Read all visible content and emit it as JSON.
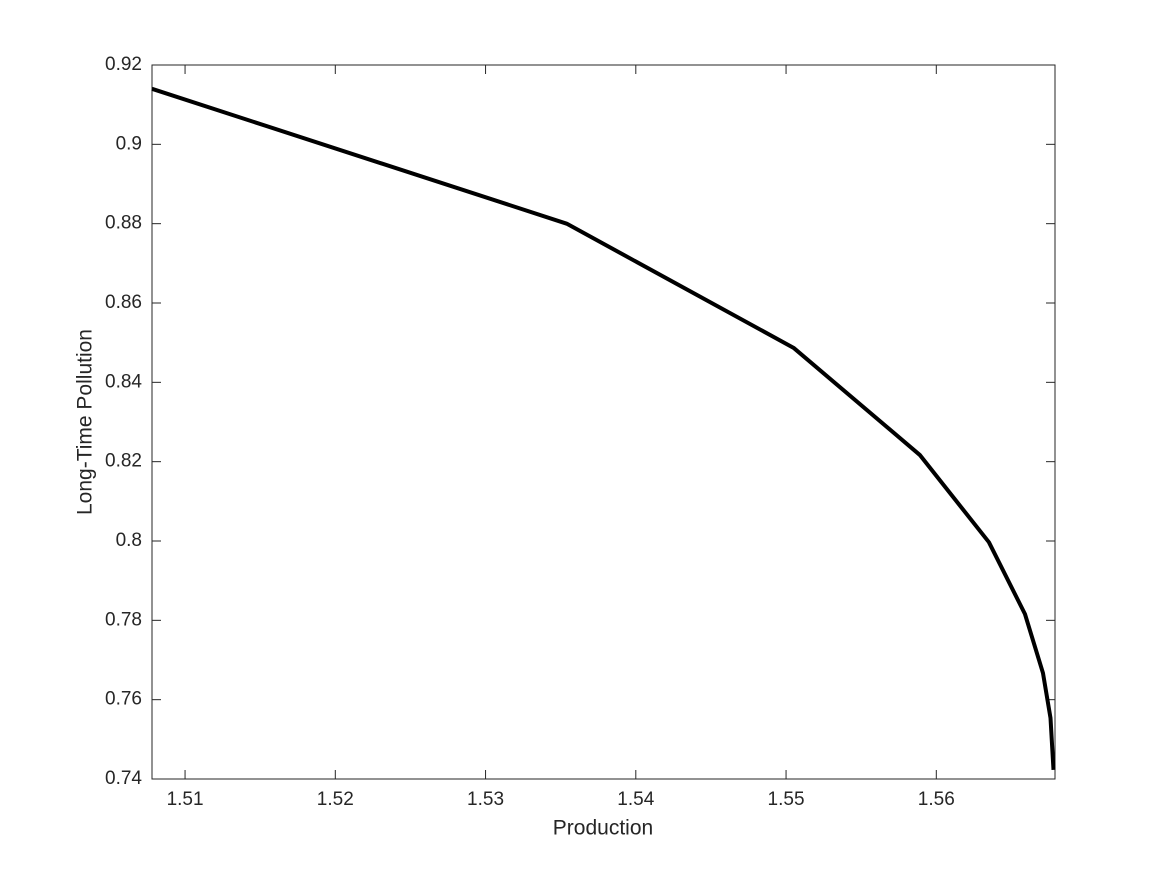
{
  "chart_data": {
    "type": "line",
    "x_label": "Production",
    "y_label": "Long-Time Pollution",
    "x": [
      1.5078,
      1.5354,
      1.5505,
      1.5589,
      1.5635,
      1.5659,
      1.5671,
      1.5676,
      1.5678
    ],
    "values": [
      0.914,
      0.88,
      0.8487,
      0.8217,
      0.7997,
      0.7816,
      0.7667,
      0.7554,
      0.7423
    ],
    "color": "#000000",
    "xlim": [
      1.5078,
      1.5679
    ],
    "ylim": [
      0.74,
      0.92
    ],
    "xticks": [
      1.51,
      1.52,
      1.53,
      1.54,
      1.55,
      1.56
    ],
    "yticks": [
      0.74,
      0.76,
      0.78,
      0.8,
      0.82,
      0.84,
      0.86,
      0.88,
      0.9,
      0.92
    ],
    "grid": false
  }
}
